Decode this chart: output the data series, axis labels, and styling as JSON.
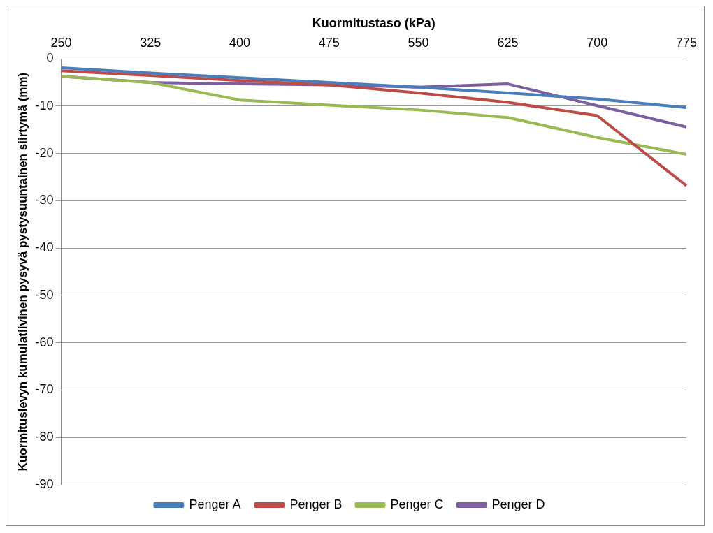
{
  "chart_data": {
    "type": "line",
    "xlabel": "Kuormitustaso (kPa)",
    "ylabel": "Kuormituslevyn kumulatiivinen pysyvä pystysuuntainen siirtymä (mm)",
    "categories": [
      "250",
      "325",
      "400",
      "475",
      "550",
      "625",
      "700",
      "775"
    ],
    "series": [
      {
        "name": "Penger A",
        "color": "#4a7ebb",
        "values": [
          -1.9,
          -3,
          -4,
          -5,
          -6,
          -7.2,
          -8.5,
          -10.3
        ]
      },
      {
        "name": "Penger B",
        "color": "#be4b48",
        "values": [
          -2.5,
          -3.5,
          -4.6,
          -5.5,
          -7.2,
          -9.2,
          -12,
          -26.8
        ]
      },
      {
        "name": "Penger C",
        "color": "#98b954",
        "values": [
          -3.7,
          -5,
          -8.7,
          -9.8,
          -10.8,
          -12.4,
          -16.6,
          -20.2
        ]
      },
      {
        "name": "Penger D",
        "color": "#7d5fa0",
        "values": [
          -3.7,
          -5,
          -5.3,
          -5.5,
          -6,
          -5.3,
          -9.9,
          -14.4
        ]
      }
    ],
    "ylim": [
      -90,
      0
    ],
    "yticks": [
      0,
      -10,
      -20,
      -30,
      -40,
      -50,
      -60,
      -70,
      -80,
      -90
    ],
    "grid": "y",
    "legend": "bottom",
    "marker": "none",
    "line_style": "solid"
  }
}
